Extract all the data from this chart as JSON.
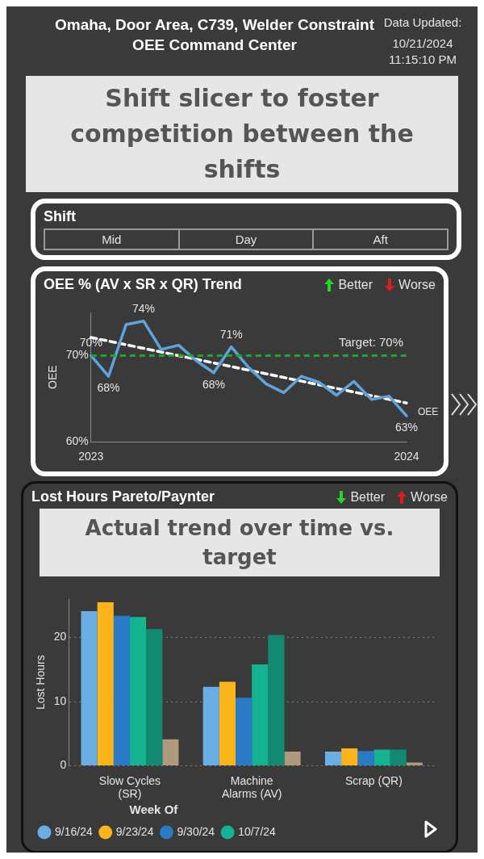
{
  "chart_data": [
    {
      "type": "other",
      "title": "Omaha, Door Area, C739, Welder Constraint OEE Command Center",
      "annotations": [
        "Data Updated:",
        "10/21/2024",
        "11:15:10 PM",
        "Shift slicer to foster competition between the shifts",
        "Shift",
        "Mid",
        "Day",
        "Aft"
      ]
    },
    {
      "type": "line",
      "title": "OEE % (AV x SR x QR) Trend",
      "ylabel": "OEE",
      "categories": [
        "2023",
        null,
        null,
        null,
        null,
        null,
        null,
        null,
        null,
        null,
        null,
        null,
        null,
        null,
        null,
        null,
        null,
        null,
        "2024"
      ],
      "series": [
        {
          "name": "OEE",
          "color": "#5ea3dc",
          "values": [
            70,
            67.6,
            73.6,
            74,
            70.7,
            71.2,
            69.4,
            68,
            71,
            68.6,
            66.7,
            65.7,
            67.6,
            66.9,
            65.4,
            67.0,
            64.9,
            65.3,
            63
          ],
          "value_labels": [
            "70%",
            "68%",
            null,
            "74%",
            null,
            null,
            null,
            "68%",
            "71%",
            null,
            null,
            null,
            null,
            null,
            null,
            null,
            null,
            null,
            "63%"
          ]
        },
        {
          "type": "line",
          "color": "#ffffff",
          "line_style": "dashed",
          "values": [
            72.1,
            null,
            null,
            null,
            null,
            null,
            null,
            null,
            null,
            null,
            null,
            null,
            null,
            null,
            null,
            null,
            null,
            null,
            64.5
          ]
        }
      ],
      "ylim": [
        60,
        75
      ],
      "yticks": [
        {
          "value": 60,
          "label": "60%"
        },
        {
          "value": 70,
          "label": "70%"
        }
      ],
      "ref_lines": [
        {
          "axis": "y",
          "value": 70,
          "label": "Target: 70%",
          "color": "#22a52c",
          "line_style": "dashed"
        }
      ],
      "marker": "none",
      "legend": false,
      "annotations": [
        "Better",
        "Worse"
      ]
    },
    {
      "type": "bar",
      "title": "Lost Hours Pareto/Paynter",
      "ylabel": "Lost Hours",
      "categories": [
        "Slow Cycles (SR)",
        "Machine Alarms (AV)",
        "Scrap (QR)"
      ],
      "series": [
        {
          "name": "9/16/24",
          "color": "#6aaee3",
          "values": [
            24.1,
            12.3,
            2.2
          ]
        },
        {
          "name": "9/23/24",
          "color": "#fbb41a",
          "values": [
            25.5,
            13.1,
            2.7
          ]
        },
        {
          "name": "9/30/24",
          "color": "#2a7ac8",
          "values": [
            23.4,
            10.6,
            2.3
          ]
        },
        {
          "name": "10/7/24",
          "color": "#14b391",
          "values": [
            23.2,
            15.8,
            2.5
          ]
        },
        {
          "color": "#128a72",
          "values": [
            21.3,
            20.4,
            2.5
          ]
        },
        {
          "color": "#b09a7d",
          "values": [
            4.1,
            2.2,
            0.5
          ]
        }
      ],
      "ylim": [
        0,
        26
      ],
      "yticks": [
        0,
        10,
        20
      ],
      "grid": "y",
      "legend": "bottom",
      "legend_title": "Week Of",
      "annotations": [
        "Better",
        "Worse",
        "Actual trend over time vs. target"
      ]
    }
  ]
}
